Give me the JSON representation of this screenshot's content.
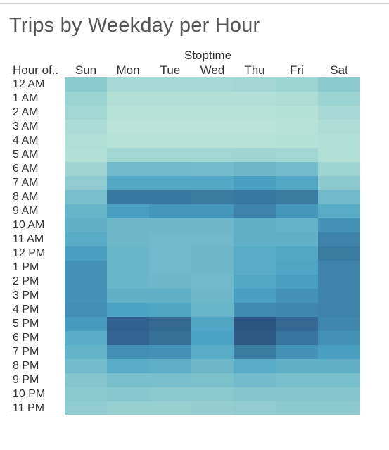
{
  "chart_data": {
    "type": "heatmap",
    "title": "Trips by Weekday per Hour",
    "column_group_label": "Stoptime",
    "row_header": "Hour of..",
    "columns": [
      "Sun",
      "Mon",
      "Tue",
      "Wed",
      "Thu",
      "Fri",
      "Sat"
    ],
    "rows": [
      "12 AM",
      "1 AM",
      "2 AM",
      "3 AM",
      "4 AM",
      "5 AM",
      "6 AM",
      "7 AM",
      "8 AM",
      "9 AM",
      "10 AM",
      "11 AM",
      "12 PM",
      "1 PM",
      "2 PM",
      "3 PM",
      "4 PM",
      "5 PM",
      "6 PM",
      "7 PM",
      "8 PM",
      "9 PM",
      "10 PM",
      "11 PM"
    ],
    "values": [
      [
        0.25,
        0.12,
        0.12,
        0.12,
        0.13,
        0.16,
        0.25
      ],
      [
        0.18,
        0.05,
        0.05,
        0.05,
        0.06,
        0.08,
        0.18
      ],
      [
        0.14,
        0.03,
        0.03,
        0.03,
        0.03,
        0.04,
        0.12
      ],
      [
        0.1,
        0.02,
        0.02,
        0.02,
        0.02,
        0.03,
        0.08
      ],
      [
        0.07,
        0.03,
        0.03,
        0.03,
        0.03,
        0.04,
        0.06
      ],
      [
        0.06,
        0.14,
        0.14,
        0.14,
        0.15,
        0.14,
        0.06
      ],
      [
        0.15,
        0.4,
        0.4,
        0.38,
        0.42,
        0.38,
        0.16
      ],
      [
        0.24,
        0.56,
        0.56,
        0.56,
        0.62,
        0.56,
        0.25
      ],
      [
        0.36,
        0.82,
        0.82,
        0.8,
        0.82,
        0.8,
        0.4
      ],
      [
        0.45,
        0.62,
        0.66,
        0.66,
        0.76,
        0.66,
        0.52
      ],
      [
        0.48,
        0.42,
        0.42,
        0.42,
        0.48,
        0.46,
        0.68
      ],
      [
        0.52,
        0.42,
        0.4,
        0.4,
        0.48,
        0.48,
        0.76
      ],
      [
        0.62,
        0.44,
        0.4,
        0.42,
        0.52,
        0.56,
        0.8
      ],
      [
        0.68,
        0.44,
        0.4,
        0.42,
        0.52,
        0.58,
        0.76
      ],
      [
        0.68,
        0.44,
        0.42,
        0.4,
        0.56,
        0.62,
        0.76
      ],
      [
        0.68,
        0.48,
        0.48,
        0.42,
        0.62,
        0.68,
        0.76
      ],
      [
        0.7,
        0.6,
        0.58,
        0.44,
        0.72,
        0.74,
        0.76
      ],
      [
        0.64,
        0.94,
        0.9,
        0.58,
        1.0,
        0.9,
        0.74
      ],
      [
        0.52,
        0.92,
        0.86,
        0.6,
        0.98,
        0.84,
        0.68
      ],
      [
        0.46,
        0.7,
        0.68,
        0.52,
        0.8,
        0.68,
        0.62
      ],
      [
        0.38,
        0.52,
        0.5,
        0.42,
        0.52,
        0.48,
        0.48
      ],
      [
        0.3,
        0.36,
        0.36,
        0.34,
        0.38,
        0.36,
        0.36
      ],
      [
        0.26,
        0.28,
        0.26,
        0.26,
        0.3,
        0.3,
        0.3
      ],
      [
        0.24,
        0.2,
        0.2,
        0.22,
        0.24,
        0.26,
        0.26
      ]
    ],
    "value_scale": [
      0,
      1
    ],
    "color_low": "#bde6d8",
    "color_mid": "#4aa3c3",
    "color_high": "#2b5483",
    "legend": "none"
  }
}
